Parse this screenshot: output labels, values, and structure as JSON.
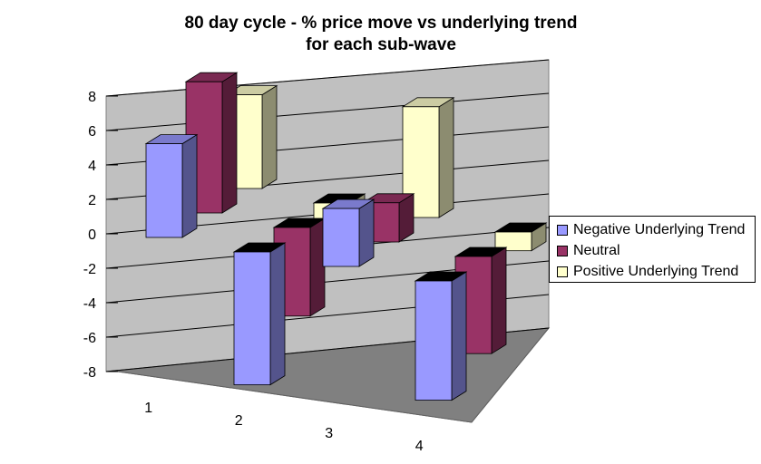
{
  "chart_data": {
    "type": "bar",
    "style": "3d-clustered-column",
    "title": [
      "80 day cycle - % price move vs underlying trend",
      "for each sub-wave"
    ],
    "categories": [
      "1",
      "2",
      "3",
      "4"
    ],
    "y_ticks": [
      "8",
      "6",
      "4",
      "2",
      "0",
      "-2",
      "-4",
      "-6",
      "-8"
    ],
    "ylim": [
      -8,
      8
    ],
    "grid": true,
    "legend_position": "right",
    "series": [
      {
        "name": "Negative Underlying Trend",
        "color": "#9999ff",
        "values": [
          5.5,
          -7.8,
          3.4,
          -7.0
        ]
      },
      {
        "name": "Neutral",
        "color": "#993366",
        "values": [
          7.7,
          -5.2,
          2.3,
          -5.7
        ]
      },
      {
        "name": "Positive Underlying Trend",
        "color": "#ffffcc",
        "values": [
          5.5,
          -1.4,
          6.5,
          -1.1
        ]
      }
    ]
  }
}
